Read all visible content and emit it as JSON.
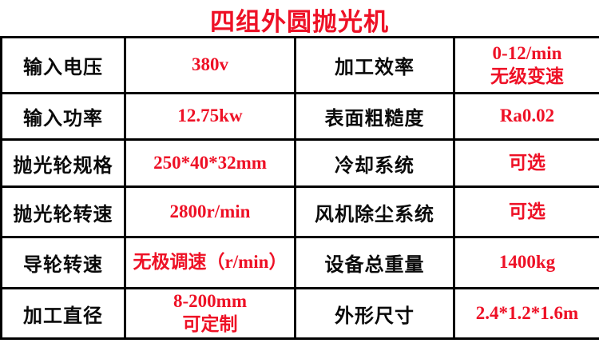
{
  "page": {
    "title": "四组外圆抛光机"
  },
  "colors": {
    "accent_red": "#ee1126",
    "label_black": "#0a0a0a",
    "grid_line": "#000000",
    "background": "#ffffff"
  },
  "table": {
    "rows": [
      {
        "label1": "输入电压",
        "value1": "380v",
        "label2": "加工效率",
        "value2": "0-12/min\n无级变速"
      },
      {
        "label1": "输入功率",
        "value1": "12.75kw",
        "label2": "表面粗糙度",
        "value2": "Ra0.02"
      },
      {
        "label1": "抛光轮规格",
        "value1": "250*40*32mm",
        "label2": "冷却系统",
        "value2": "可选"
      },
      {
        "label1": "抛光轮转速",
        "value1": "2800r/min",
        "label2": "风机除尘系统",
        "value2": "可选"
      },
      {
        "label1": "导轮转速",
        "value1": "无极调速（r/min）",
        "label2": "设备总重量",
        "value2": "1400kg"
      },
      {
        "label1": "加工直径",
        "value1": "8-200mm\n可定制",
        "label2": "外形尺寸",
        "value2": "2.4*1.2*1.6m"
      }
    ]
  }
}
